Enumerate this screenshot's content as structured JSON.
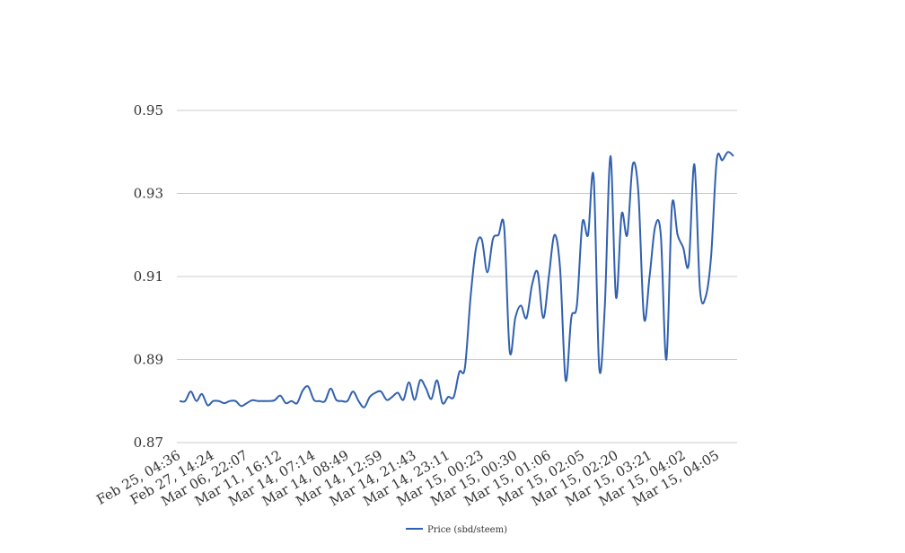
{
  "chart_data": {
    "type": "line",
    "title": "",
    "xlabel": "",
    "ylabel": "",
    "ylim": [
      0.87,
      0.95
    ],
    "y_ticks": [
      "0.95",
      "0.93",
      "0.91",
      "0.89",
      "0.87"
    ],
    "y_tick_values": [
      0.95,
      0.93,
      0.91,
      0.89,
      0.87
    ],
    "x_tick_labels": [
      "Feb 25, 04:36",
      "Feb 27, 14:24",
      "Mar 06, 22:07",
      "Mar 11, 16:12",
      "Mar 14, 07:14",
      "Mar 14, 08:49",
      "Mar 14, 12:59",
      "Mar 14, 21:43",
      "Mar 14, 23:11",
      "Mar 15, 00:23",
      "Mar 15, 00:30",
      "Mar 15, 01:06",
      "Mar 15, 02:05",
      "Mar 15, 02:20",
      "Mar 15, 03:21",
      "Mar 15, 04:02",
      "Mar 15, 04:05"
    ],
    "grid": true,
    "legend_position": "bottom",
    "series": [
      {
        "name": "Price (sbd/steem)",
        "color": "#3060b0",
        "values": [
          0.88,
          0.88,
          0.8823,
          0.88,
          0.8817,
          0.879,
          0.88,
          0.88,
          0.8795,
          0.88,
          0.88,
          0.8788,
          0.8795,
          0.8802,
          0.88,
          0.88,
          0.88,
          0.8802,
          0.8813,
          0.8795,
          0.88,
          0.8795,
          0.8825,
          0.8835,
          0.8803,
          0.88,
          0.88,
          0.883,
          0.8803,
          0.88,
          0.88,
          0.8823,
          0.88,
          0.8785,
          0.881,
          0.882,
          0.8823,
          0.8803,
          0.881,
          0.882,
          0.8803,
          0.8845,
          0.8803,
          0.885,
          0.8832,
          0.8805,
          0.885,
          0.8795,
          0.881,
          0.881,
          0.887,
          0.888,
          0.905,
          0.917,
          0.919,
          0.911,
          0.919,
          0.92,
          0.922,
          0.892,
          0.9,
          0.903,
          0.9,
          0.908,
          0.911,
          0.9,
          0.91,
          0.92,
          0.912,
          0.885,
          0.9,
          0.903,
          0.923,
          0.92,
          0.934,
          0.888,
          0.903,
          0.939,
          0.905,
          0.925,
          0.92,
          0.937,
          0.93,
          0.9,
          0.91,
          0.922,
          0.92,
          0.89,
          0.927,
          0.92,
          0.917,
          0.913,
          0.937,
          0.907,
          0.905,
          0.915,
          0.938,
          0.938,
          0.94,
          0.939
        ]
      }
    ]
  }
}
